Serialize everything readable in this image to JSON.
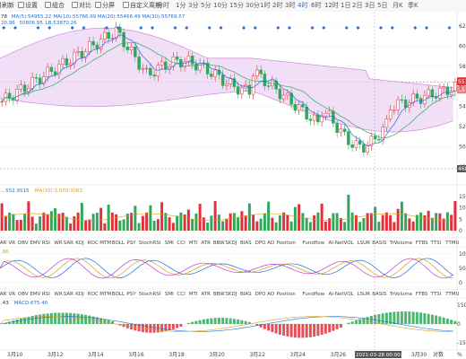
{
  "toolbar": {
    "buttons": [
      "刷新",
      "设置",
      "组合",
      "对比",
      "分屏",
      "自定义周期"
    ],
    "timeframes": [
      "分时",
      "1分",
      "3分",
      "5分",
      "10分",
      "15分",
      "30分",
      "1时",
      "2时",
      "3时",
      "4时",
      "6时",
      "12时",
      "1日",
      "2日",
      "3日",
      "5日",
      "月K",
      "季K"
    ],
    "active_timeframe": "4时",
    "icons": [
      "refresh-icon",
      "gear-icon",
      "grid-icon",
      "compare-icon",
      "split-icon",
      "plus-icon"
    ]
  },
  "main": {
    "ma_legend": [
      {
        "text": "78",
        "color": "#333333"
      },
      {
        "text": "MA(5):54955.22",
        "color": "#1e6fd9"
      },
      {
        "text": "MA(10):55766.99",
        "color": "#1e6fd9"
      },
      {
        "text": "MA(20):55466.49",
        "color": "#1e6fd9"
      },
      {
        "text": "MA(30):55769.57",
        "color": "#1e6fd9"
      }
    ],
    "boll_legend": [
      {
        "text": "20.96",
        "color": "#1e6fd9"
      },
      {
        "text": "50806.95",
        "color": "#1e6fd9"
      },
      {
        "text": "LB:53870.26",
        "color": "#1e6fd9"
      }
    ],
    "price_ticks": [
      "620",
      "600",
      "580",
      "560",
      "540",
      "520",
      "500",
      "480"
    ],
    "current_price_tag": "551",
    "current_price_tag_2": "55",
    "low_price_tag": "468",
    "extra_tag": "5"
  },
  "volume": {
    "legend": [
      {
        "text": "...552.9515",
        "color": "#1e6fd9"
      },
      {
        "text": "MA(10):3,070.3063",
        "color": "#d4a017"
      }
    ],
    "ticks": [
      "15",
      "10",
      "5",
      "0"
    ]
  },
  "indicator_tabs": [
    "BAR",
    "VR",
    "OBV",
    "EMV",
    "RSI",
    "WR",
    "SAR",
    "KDJ",
    "ROC",
    "MTM",
    "BOLL",
    "PSY",
    "StochRSI",
    "SMI",
    "CCI",
    "MTI",
    "ATR",
    "BBW",
    "SKDJ",
    "BIAS",
    "DPO",
    "AO",
    "Position",
    "Fundflow",
    "AI-NetVOL",
    "LSUR",
    "BASIS",
    "TrVolume",
    "FTBS",
    "TTSI",
    "TTMU"
  ],
  "kdj": {
    "legend": [
      {
        "text": ".86",
        "color": "#d4a017"
      }
    ],
    "ticks": [
      "100",
      "50",
      "0"
    ]
  },
  "macd": {
    "legend": [
      {
        "text": ".43",
        "color": "#333333"
      },
      {
        "text": "MACD:675.40",
        "color": "#1e6fd9"
      }
    ],
    "ticks": [
      "1500",
      "0",
      "-1500"
    ]
  },
  "x_axis": {
    "labels": [
      "3月10",
      "3月12",
      "3月14",
      "3月16",
      "3月18",
      "3月20",
      "3月22",
      "3月24",
      "3月26",
      "3月28",
      "3月30"
    ],
    "crosshair_label": "2021-03-28 00:00:00",
    "end_labels": [
      "对数",
      "%"
    ]
  },
  "colors": {
    "up": "#e0313b",
    "down": "#2fa85a",
    "boll_fill": "#e9d2f3",
    "accent": "#1e6fd9"
  }
}
